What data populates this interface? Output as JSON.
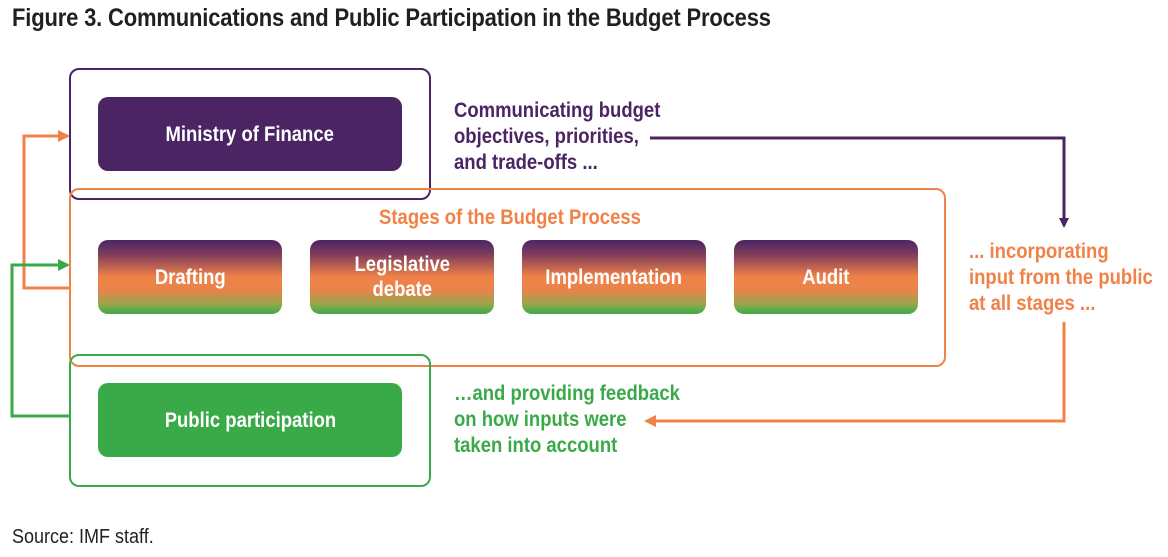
{
  "title": "Figure 3. Communications and Public Participation in the Budget Process",
  "ministry": "Ministry of Finance",
  "stages_heading": "Stages of the Budget Process",
  "stages": [
    "Drafting",
    "Legislative\ndebate",
    "Implementation",
    "Audit"
  ],
  "public": "Public participation",
  "notes": {
    "communicating": [
      "Communicating budget",
      "objectives, priorities,",
      "and trade-offs ..."
    ],
    "incorporating": [
      "... incorporating",
      "input from the public",
      "at all stages ..."
    ],
    "feedback": [
      "…and providing feedback",
      "on how inputs were",
      "taken into account"
    ]
  },
  "source": "Source: IMF staff.",
  "colors": {
    "purple": "#4b2563",
    "orange": "#f08248",
    "green": "#3aaa48"
  }
}
